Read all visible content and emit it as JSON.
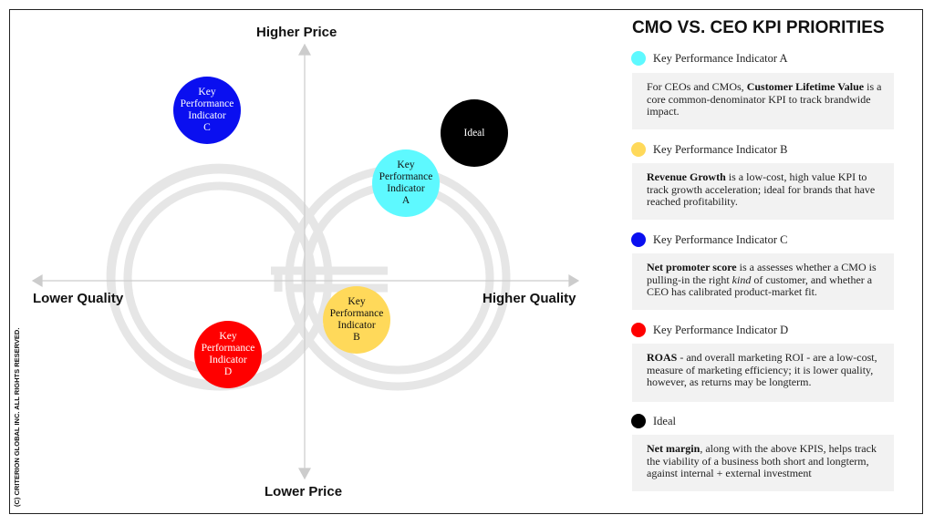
{
  "axes": {
    "top": "Higher Price",
    "bottom": "Lower Price",
    "left": "Lower Quality",
    "right": "Higher Quality"
  },
  "bubbles": [
    {
      "id": "a",
      "lines": [
        "Key",
        "Performance",
        "Indicator",
        "A"
      ],
      "color": "#5ef9ff",
      "text_color": "#111111",
      "quality": "higher",
      "price": "higher"
    },
    {
      "id": "b",
      "lines": [
        "Key",
        "Performance",
        "Indicator",
        "B"
      ],
      "color": "#ffd95a",
      "text_color": "#111111",
      "quality": "higher",
      "price": "lower"
    },
    {
      "id": "c",
      "lines": [
        "Key",
        "Performance",
        "Indicator",
        "C"
      ],
      "color": "#0a0ff0",
      "text_color": "#ffffff",
      "quality": "lower",
      "price": "higher"
    },
    {
      "id": "d",
      "lines": [
        "Key",
        "Performance",
        "Indicator",
        "D"
      ],
      "color": "#ff0000",
      "text_color": "#ffffff",
      "quality": "lower",
      "price": "lower"
    },
    {
      "id": "ideal",
      "lines": [
        "Ideal"
      ],
      "color": "#000000",
      "text_color": "#ffffff",
      "quality": "higher",
      "price": "higher"
    }
  ],
  "copyright": "(C) CRITERION GLOBAL INC. ALL RIGHTS RESERVED.",
  "panel": {
    "title": "CMO VS. CEO KPI PRIORITIES",
    "items": [
      {
        "label": "Key Performance Indicator A",
        "color": "#5ef9ff",
        "pre": "For CEOs and CMOs, ",
        "bold": "Customer Lifetime Value",
        "post": " is a core common-denominator KPI to track brandwide impact."
      },
      {
        "label": "Key Performance Indicator B",
        "color": "#ffd95a",
        "pre": "",
        "bold": "Revenue Growth",
        "post": " is a low-cost, high value KPI to track growth acceleration; ideal for brands that have reached profitability."
      },
      {
        "label": "Key Performance Indicator C",
        "color": "#0a0ff0",
        "pre": "",
        "bold": "Net promoter score",
        "post": " is a assesses whether a CMO is pulling-in the right ",
        "italic": "kind",
        "post2": " of customer, and whether a CEO has calibrated product-market fit."
      },
      {
        "label": "Key Performance Indicator D",
        "color": "#ff0000",
        "pre": "",
        "bold": "ROAS",
        "post": " - and overall marketing ROI - are a low-cost,  measure of marketing efficiency; it is lower quality, however, as returns may be longterm."
      },
      {
        "label": "Ideal",
        "color": "#000000",
        "pre": "",
        "bold": "Net margin",
        "post": ", along with the above  KPIS, helps track the viability of a business both short and longterm, against  internal + external investment"
      }
    ]
  }
}
